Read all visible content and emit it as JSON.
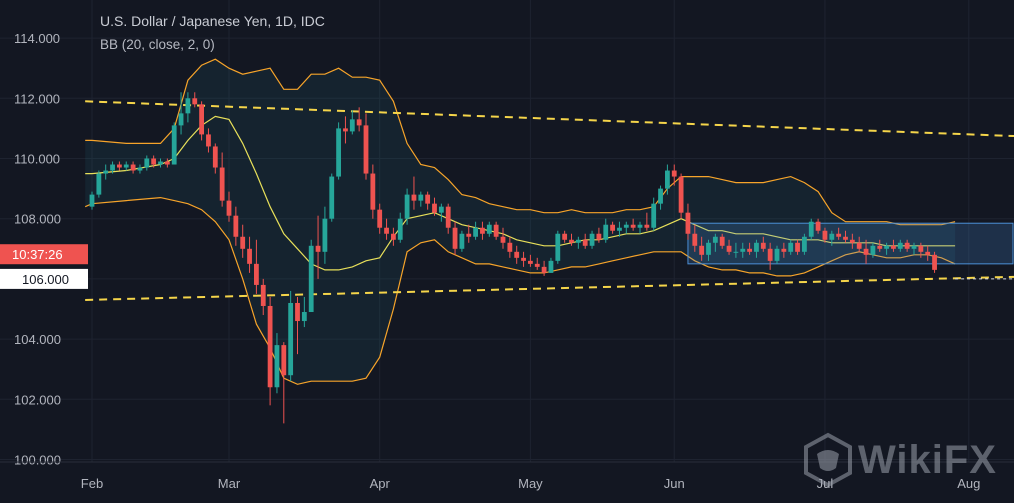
{
  "header": {
    "symbol": "U.S. Dollar / Japanese Yen, 1D, IDC",
    "indicator": "BB (20, close, 2, 0)"
  },
  "price_labels": {
    "time_badge": "10:37:26",
    "level_badge": "106.000"
  },
  "watermark": {
    "text": "WikiFX",
    "icon": "wikifx-logo-icon"
  },
  "colors": {
    "background": "#131722",
    "up": "#26a69a",
    "down": "#ef5350",
    "bb_outer": "#f7a42a",
    "bb_basis": "#e8e05a",
    "trendline": "#f5d54a",
    "range_box": "#4b8fd6",
    "time_badge": "#ef5350"
  },
  "chart_data": {
    "type": "candlestick",
    "title": "U.S. Dollar / Japanese Yen, 1D, IDC",
    "indicator": "BB (20, close, 2, 0)",
    "y_axis": {
      "ticks": [
        "100.000",
        "102.000",
        "104.000",
        "106.000",
        "108.000",
        "110.000",
        "112.000",
        "114.000"
      ],
      "ylim": [
        99.9,
        114.9
      ]
    },
    "x_axis": {
      "ticks": [
        "Feb",
        "Mar",
        "Apr",
        "May",
        "Jun",
        "Jul",
        "Aug"
      ],
      "tick_index": [
        0,
        20,
        42,
        64,
        85,
        107,
        128
      ]
    },
    "candles": [
      [
        108.4,
        108.9,
        108.3,
        108.8
      ],
      [
        108.8,
        109.6,
        108.7,
        109.5
      ],
      [
        109.5,
        109.8,
        109.3,
        109.6
      ],
      [
        109.6,
        109.9,
        109.5,
        109.8
      ],
      [
        109.8,
        109.9,
        109.6,
        109.7
      ],
      [
        109.7,
        109.9,
        109.6,
        109.8
      ],
      [
        109.8,
        109.9,
        109.5,
        109.6
      ],
      [
        109.6,
        109.8,
        109.5,
        109.7
      ],
      [
        109.7,
        110.1,
        109.6,
        110.0
      ],
      [
        110.0,
        110.1,
        109.7,
        109.8
      ],
      [
        109.8,
        110.0,
        109.7,
        109.9
      ],
      [
        109.9,
        110.0,
        109.7,
        109.8
      ],
      [
        109.8,
        111.2,
        109.8,
        111.1
      ],
      [
        111.1,
        112.2,
        110.8,
        111.5
      ],
      [
        111.5,
        112.2,
        111.2,
        112.0
      ],
      [
        112.0,
        112.2,
        111.7,
        111.8
      ],
      [
        111.8,
        111.9,
        110.6,
        110.8
      ],
      [
        110.8,
        111.0,
        110.2,
        110.4
      ],
      [
        110.4,
        110.5,
        109.5,
        109.7
      ],
      [
        109.7,
        110.2,
        108.4,
        108.6
      ],
      [
        108.6,
        108.9,
        107.9,
        108.1
      ],
      [
        108.1,
        108.4,
        107.1,
        107.4
      ],
      [
        107.4,
        107.8,
        106.7,
        107.0
      ],
      [
        107.0,
        107.4,
        106.2,
        106.5
      ],
      [
        106.5,
        107.3,
        105.5,
        105.8
      ],
      [
        105.8,
        106.0,
        104.8,
        105.1
      ],
      [
        105.1,
        105.4,
        101.8,
        102.4
      ],
      [
        102.4,
        104.2,
        102.2,
        103.8
      ],
      [
        103.8,
        103.9,
        101.2,
        102.8
      ],
      [
        102.8,
        105.6,
        102.6,
        105.2
      ],
      [
        105.2,
        105.4,
        103.5,
        104.6
      ],
      [
        104.6,
        105.4,
        104.4,
        104.9
      ],
      [
        104.9,
        107.3,
        104.9,
        107.1
      ],
      [
        107.1,
        108.1,
        106.0,
        106.9
      ],
      [
        106.9,
        108.4,
        106.5,
        108.0
      ],
      [
        108.0,
        109.5,
        107.9,
        109.4
      ],
      [
        109.4,
        111.2,
        109.3,
        111.0
      ],
      [
        111.0,
        111.4,
        110.5,
        110.9
      ],
      [
        110.9,
        111.6,
        110.8,
        111.3
      ],
      [
        111.3,
        111.7,
        110.9,
        111.1
      ],
      [
        111.1,
        111.5,
        109.3,
        109.5
      ],
      [
        109.5,
        109.8,
        108.0,
        108.3
      ],
      [
        108.3,
        108.5,
        107.5,
        107.7
      ],
      [
        107.7,
        108.0,
        107.3,
        107.5
      ],
      [
        107.5,
        107.7,
        107.1,
        107.3
      ],
      [
        107.3,
        108.2,
        107.2,
        108.0
      ],
      [
        108.0,
        109.0,
        107.8,
        108.8
      ],
      [
        108.8,
        109.4,
        108.3,
        108.6
      ],
      [
        108.6,
        108.9,
        108.4,
        108.8
      ],
      [
        108.8,
        108.9,
        108.3,
        108.5
      ],
      [
        108.5,
        108.7,
        108.1,
        108.2
      ],
      [
        108.2,
        108.5,
        107.9,
        108.4
      ],
      [
        108.4,
        108.5,
        107.5,
        107.7
      ],
      [
        107.7,
        107.9,
        106.8,
        107.0
      ],
      [
        107.0,
        107.6,
        106.9,
        107.5
      ],
      [
        107.5,
        107.8,
        107.2,
        107.4
      ],
      [
        107.4,
        107.9,
        107.3,
        107.7
      ],
      [
        107.7,
        107.9,
        107.3,
        107.5
      ],
      [
        107.5,
        107.9,
        107.4,
        107.8
      ],
      [
        107.8,
        107.9,
        107.3,
        107.4
      ],
      [
        107.4,
        107.7,
        107.0,
        107.2
      ],
      [
        107.2,
        107.4,
        106.7,
        106.9
      ],
      [
        106.9,
        107.1,
        106.5,
        106.7
      ],
      [
        106.7,
        106.9,
        106.4,
        106.6
      ],
      [
        106.6,
        106.8,
        106.4,
        106.5
      ],
      [
        106.5,
        106.7,
        106.3,
        106.4
      ],
      [
        106.4,
        106.6,
        106.1,
        106.2
      ],
      [
        106.2,
        106.7,
        106.2,
        106.6
      ],
      [
        106.6,
        107.6,
        106.5,
        107.5
      ],
      [
        107.5,
        107.6,
        107.2,
        107.3
      ],
      [
        107.3,
        107.5,
        107.1,
        107.2
      ],
      [
        107.2,
        107.4,
        107.0,
        107.3
      ],
      [
        107.3,
        107.5,
        107.0,
        107.1
      ],
      [
        107.1,
        107.6,
        107.0,
        107.5
      ],
      [
        107.5,
        107.7,
        107.2,
        107.3
      ],
      [
        107.3,
        108.0,
        107.2,
        107.8
      ],
      [
        107.8,
        107.9,
        107.5,
        107.6
      ],
      [
        107.6,
        107.9,
        107.4,
        107.7
      ],
      [
        107.7,
        107.9,
        107.5,
        107.8
      ],
      [
        107.8,
        108.0,
        107.6,
        107.7
      ],
      [
        107.7,
        107.9,
        107.5,
        107.8
      ],
      [
        107.8,
        108.2,
        107.6,
        107.7
      ],
      [
        107.7,
        108.7,
        107.6,
        108.5
      ],
      [
        108.5,
        109.1,
        108.3,
        109.0
      ],
      [
        109.0,
        109.8,
        108.8,
        109.6
      ],
      [
        109.6,
        109.8,
        109.1,
        109.4
      ],
      [
        109.4,
        109.5,
        108.0,
        108.2
      ],
      [
        108.2,
        108.5,
        107.3,
        107.5
      ],
      [
        107.5,
        107.8,
        106.9,
        107.1
      ],
      [
        107.1,
        107.4,
        106.6,
        106.8
      ],
      [
        106.8,
        107.3,
        106.6,
        107.2
      ],
      [
        107.2,
        107.5,
        106.9,
        107.4
      ],
      [
        107.4,
        107.5,
        107.0,
        107.1
      ],
      [
        107.1,
        107.3,
        106.8,
        106.9
      ],
      [
        106.9,
        107.2,
        106.7,
        106.9
      ],
      [
        106.9,
        107.2,
        106.7,
        107.0
      ],
      [
        107.0,
        107.2,
        106.8,
        106.9
      ],
      [
        106.9,
        107.3,
        106.7,
        107.2
      ],
      [
        107.2,
        107.4,
        106.9,
        107.0
      ],
      [
        107.0,
        107.2,
        106.3,
        106.6
      ],
      [
        106.6,
        107.1,
        106.5,
        107.0
      ],
      [
        107.0,
        107.2,
        106.7,
        106.9
      ],
      [
        106.9,
        107.3,
        106.8,
        107.2
      ],
      [
        107.2,
        107.3,
        106.8,
        106.9
      ],
      [
        106.9,
        107.5,
        106.8,
        107.4
      ],
      [
        107.4,
        108.0,
        107.3,
        107.9
      ],
      [
        107.9,
        108.0,
        107.5,
        107.6
      ],
      [
        107.6,
        107.7,
        107.2,
        107.3
      ],
      [
        107.3,
        107.6,
        107.1,
        107.5
      ],
      [
        107.5,
        107.7,
        107.3,
        107.4
      ],
      [
        107.4,
        107.6,
        107.2,
        107.3
      ],
      [
        107.3,
        107.5,
        107.0,
        107.2
      ],
      [
        107.2,
        107.4,
        106.9,
        107.0
      ],
      [
        107.0,
        107.3,
        106.5,
        106.8
      ],
      [
        106.8,
        107.2,
        106.7,
        107.1
      ],
      [
        107.1,
        107.3,
        106.9,
        107.0
      ],
      [
        107.0,
        107.2,
        106.8,
        107.1
      ],
      [
        107.1,
        107.3,
        106.9,
        107.0
      ],
      [
        107.0,
        107.3,
        106.9,
        107.2
      ],
      [
        107.2,
        107.3,
        106.9,
        107.0
      ],
      [
        107.0,
        107.2,
        106.8,
        107.1
      ],
      [
        107.1,
        107.2,
        106.7,
        106.9
      ],
      [
        106.9,
        107.1,
        106.6,
        106.8
      ],
      [
        106.8,
        106.9,
        106.2,
        106.3
      ]
    ],
    "bollinger": {
      "points": [
        [
          -1,
          110.6,
          109.5,
          108.4
        ],
        [
          0,
          110.6,
          109.5,
          108.5
        ],
        [
          5,
          110.5,
          109.6,
          108.6
        ],
        [
          10,
          110.5,
          109.8,
          108.7
        ],
        [
          12,
          111.0,
          110.0,
          108.6
        ],
        [
          14,
          112.6,
          110.6,
          108.5
        ],
        [
          16,
          113.1,
          111.1,
          108.3
        ],
        [
          18,
          113.3,
          111.4,
          107.9
        ],
        [
          20,
          113.0,
          111.3,
          107.3
        ],
        [
          22,
          112.8,
          110.5,
          106.0
        ],
        [
          24,
          112.9,
          109.5,
          104.5
        ],
        [
          26,
          113.0,
          108.4,
          103.7
        ],
        [
          28,
          112.3,
          107.5,
          102.7
        ],
        [
          30,
          112.3,
          107.0,
          102.5
        ],
        [
          32,
          112.8,
          106.5,
          102.6
        ],
        [
          34,
          112.8,
          106.3,
          102.6
        ],
        [
          36,
          113.0,
          106.3,
          102.6
        ],
        [
          38,
          112.7,
          106.4,
          102.6
        ],
        [
          40,
          112.7,
          106.6,
          102.7
        ],
        [
          42,
          112.6,
          106.7,
          103.4
        ],
        [
          44,
          111.9,
          107.4,
          105.0
        ],
        [
          46,
          110.5,
          108.0,
          106.9
        ],
        [
          48,
          109.8,
          108.1,
          107.2
        ],
        [
          50,
          109.7,
          108.2,
          107.3
        ],
        [
          52,
          109.3,
          108.0,
          106.9
        ],
        [
          54,
          108.8,
          107.8,
          106.7
        ],
        [
          56,
          108.7,
          107.7,
          106.5
        ],
        [
          58,
          108.5,
          107.6,
          106.5
        ],
        [
          60,
          108.4,
          107.5,
          106.4
        ],
        [
          62,
          108.3,
          107.3,
          106.3
        ],
        [
          64,
          108.3,
          107.2,
          106.2
        ],
        [
          66,
          108.2,
          107.1,
          106.2
        ],
        [
          68,
          108.2,
          107.1,
          106.3
        ],
        [
          70,
          108.3,
          107.2,
          106.4
        ],
        [
          72,
          108.2,
          107.3,
          106.4
        ],
        [
          74,
          108.2,
          107.3,
          106.5
        ],
        [
          76,
          108.2,
          107.4,
          106.6
        ],
        [
          78,
          108.3,
          107.5,
          106.7
        ],
        [
          80,
          108.3,
          107.5,
          106.8
        ],
        [
          82,
          108.4,
          107.6,
          106.9
        ],
        [
          84,
          109.0,
          107.8,
          106.9
        ],
        [
          86,
          109.4,
          108.0,
          106.9
        ],
        [
          88,
          109.4,
          107.8,
          106.6
        ],
        [
          90,
          109.4,
          107.6,
          106.4
        ],
        [
          92,
          109.3,
          107.6,
          106.3
        ],
        [
          94,
          109.2,
          107.5,
          106.3
        ],
        [
          96,
          109.2,
          107.5,
          106.2
        ],
        [
          98,
          109.2,
          107.5,
          106.2
        ],
        [
          100,
          109.3,
          107.4,
          106.1
        ],
        [
          102,
          109.4,
          107.3,
          106.1
        ],
        [
          104,
          109.2,
          107.3,
          106.2
        ],
        [
          106,
          108.9,
          107.3,
          106.4
        ],
        [
          108,
          108.2,
          107.2,
          106.6
        ],
        [
          110,
          107.9,
          107.2,
          106.8
        ],
        [
          112,
          107.9,
          107.2,
          106.9
        ],
        [
          114,
          107.9,
          107.2,
          106.8
        ],
        [
          116,
          107.9,
          107.1,
          106.7
        ],
        [
          118,
          107.8,
          107.1,
          106.7
        ],
        [
          120,
          107.8,
          107.1,
          106.8
        ],
        [
          122,
          107.8,
          107.1,
          106.8
        ],
        [
          124,
          107.8,
          107.1,
          106.7
        ],
        [
          126,
          107.9,
          107.1,
          106.5
        ]
      ]
    },
    "trendlines": [
      {
        "style": "dashed",
        "from": [
          -1,
          111.9
        ],
        "to": [
          140,
          110.7
        ]
      },
      {
        "style": "dashed",
        "from": [
          -1,
          105.3
        ],
        "to": [
          140,
          106.1
        ]
      },
      {
        "style": "dotted",
        "from": [
          126,
          106.0
        ],
        "to": [
          140,
          106.0
        ]
      }
    ],
    "range_box": {
      "x0": 87,
      "x1": 140,
      "y0": 106.5,
      "y1": 107.85
    }
  }
}
